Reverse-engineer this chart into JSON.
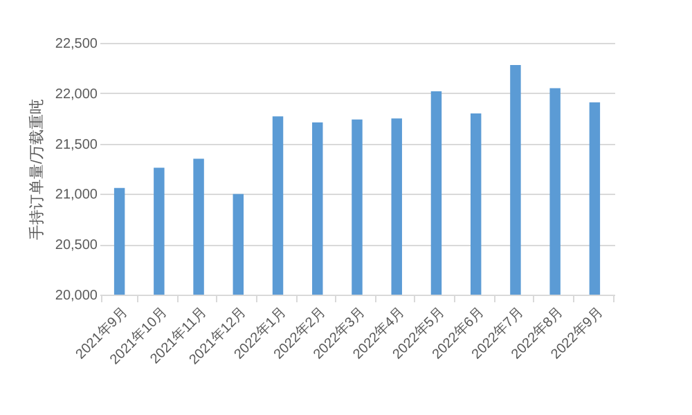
{
  "chart_data": {
    "type": "bar",
    "ylabel": "手持订单量/万载重吨",
    "categories": [
      "2021年9月",
      "2021年10月",
      "2021年11月",
      "2021年12月",
      "2022年1月",
      "2022年2月",
      "2022年3月",
      "2022年4月",
      "2022年5月",
      "2022年6月",
      "2022年7月",
      "2022年8月",
      "2022年9月"
    ],
    "values": [
      21060,
      21260,
      21350,
      21000,
      21770,
      21710,
      21740,
      21750,
      22020,
      21800,
      22280,
      22050,
      21910
    ],
    "color": "#5b9bd5",
    "ylim": [
      20000,
      22500
    ],
    "yticks": [
      {
        "value": 20000,
        "label": "20,000"
      },
      {
        "value": 20500,
        "label": "20,500"
      },
      {
        "value": 21000,
        "label": "21,000"
      },
      {
        "value": 21500,
        "label": "21,500"
      },
      {
        "value": 22000,
        "label": "22,000"
      },
      {
        "value": 22500,
        "label": "22,500"
      }
    ],
    "grid": "y"
  }
}
